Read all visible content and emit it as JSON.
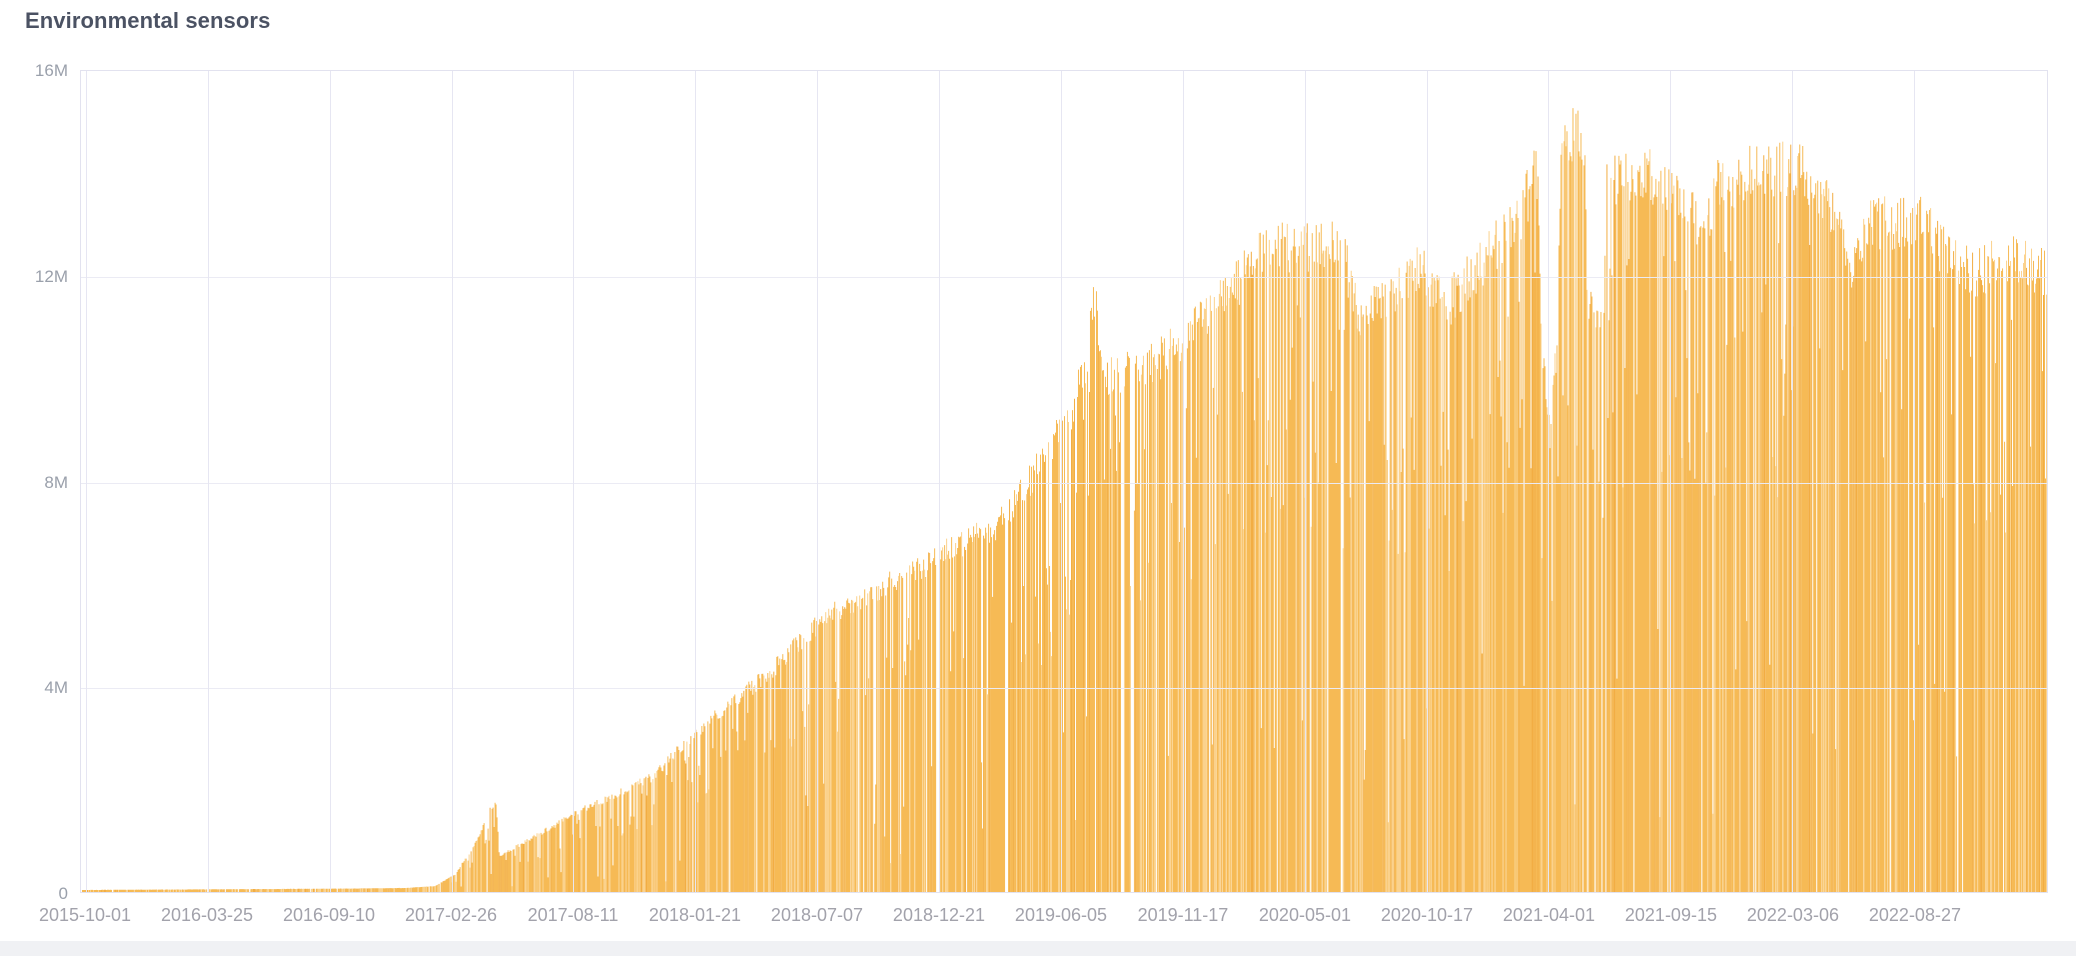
{
  "chart_data": {
    "type": "bar",
    "title": "Environmental sensors",
    "xlabel": "",
    "ylabel": "",
    "ylim": [
      0,
      16000000
    ],
    "grid": true,
    "legend": "none",
    "x_tick_labels": [
      "2015-10-01",
      "2016-03-25",
      "2016-09-10",
      "2017-02-26",
      "2017-08-11",
      "2018-01-21",
      "2018-07-07",
      "2018-12-21",
      "2019-06-05",
      "2019-11-17",
      "2020-05-01",
      "2020-10-17",
      "2021-04-01",
      "2021-09-15",
      "2022-03-06",
      "2022-08-27"
    ],
    "y_tick_labels": [
      "0",
      "4M",
      "8M",
      "12M",
      "16M"
    ],
    "series_description": "Daily sensor reading counts, one thin bar per day, from 2015-10-01 continuing past 2022-08-27 to the right edge of the plot",
    "envelope_points_frac_vs_millions": [
      [
        0.0,
        0.04
      ],
      [
        0.05,
        0.05
      ],
      [
        0.1,
        0.06
      ],
      [
        0.14,
        0.07
      ],
      [
        0.165,
        0.08
      ],
      [
        0.18,
        0.12
      ],
      [
        0.19,
        0.35
      ],
      [
        0.2,
        0.95
      ],
      [
        0.2095,
        1.78
      ],
      [
        0.211,
        1.81
      ],
      [
        0.2125,
        0.73
      ],
      [
        0.23,
        1.1
      ],
      [
        0.252,
        1.6
      ],
      [
        0.29,
        2.3
      ],
      [
        0.315,
        3.3
      ],
      [
        0.35,
        4.4
      ],
      [
        0.38,
        5.6
      ],
      [
        0.417,
        6.3
      ],
      [
        0.44,
        6.85
      ],
      [
        0.467,
        7.4
      ],
      [
        0.488,
        8.6
      ],
      [
        0.502,
        9.5
      ],
      [
        0.511,
        10.6
      ],
      [
        0.5155,
        12.0
      ],
      [
        0.521,
        10.3
      ],
      [
        0.544,
        10.6
      ],
      [
        0.564,
        11.2
      ],
      [
        0.584,
        12.0
      ],
      [
        0.601,
        13.0
      ],
      [
        0.62,
        12.9
      ],
      [
        0.64,
        13.2
      ],
      [
        0.65,
        11.4
      ],
      [
        0.663,
        12.0
      ],
      [
        0.681,
        12.5
      ],
      [
        0.695,
        11.8
      ],
      [
        0.711,
        12.6
      ],
      [
        0.732,
        13.6
      ],
      [
        0.7405,
        14.5
      ],
      [
        0.743,
        11.0
      ],
      [
        0.747,
        9.0
      ],
      [
        0.7505,
        11.0
      ],
      [
        0.753,
        15.0
      ],
      [
        0.758,
        15.3
      ],
      [
        0.7645,
        14.9
      ],
      [
        0.766,
        11.8
      ],
      [
        0.7745,
        11.7
      ],
      [
        0.776,
        14.3
      ],
      [
        0.798,
        14.4
      ],
      [
        0.818,
        14.0
      ],
      [
        0.8225,
        13.1
      ],
      [
        0.826,
        13.0
      ],
      [
        0.831,
        14.2
      ],
      [
        0.864,
        14.6
      ],
      [
        0.882,
        14.3
      ],
      [
        0.894,
        13.5
      ],
      [
        0.901,
        12.4
      ],
      [
        0.907,
        13.4
      ],
      [
        0.935,
        13.5
      ],
      [
        0.948,
        12.8
      ],
      [
        0.963,
        12.4
      ],
      [
        0.981,
        12.8
      ],
      [
        1.0,
        12.4
      ]
    ],
    "peak_value_millions": 15.3,
    "outages_frac": [
      [
        0.4345,
        0.4362
      ],
      [
        0.47,
        0.4713
      ],
      [
        0.5285,
        0.5301
      ],
      [
        0.534,
        0.5352
      ],
      [
        0.6403,
        0.6413
      ]
    ],
    "noise": {
      "seed": 7,
      "gap_p": 0.018,
      "quiet_gap_p": 0.03,
      "quiet_threshold_f": 0.188,
      "deep_p": 0.032,
      "deep_min": 0.08,
      "deep_span": 0.32,
      "mid_p": 0.17,
      "mid_min": 0.55,
      "mid_span": 0.35,
      "jitter_base": 0.93,
      "jitter_span": 0.08,
      "light_p": 0.2,
      "dark_p": 0.12
    },
    "colors": {
      "bar": "#f6ba55",
      "bar_light": "#fbd28d",
      "bar_dark": "#f2ad43",
      "grid_h": "#ebebf4",
      "grid_v": "#e6e6f2",
      "plot_border": "#e2e2ef",
      "title_text": "#4b5263",
      "y_tick_text": "#9aa0ab",
      "x_tick_text": "#a2a2ab",
      "footer_strip": "#f0f1f4",
      "background": "#ffffff"
    }
  }
}
